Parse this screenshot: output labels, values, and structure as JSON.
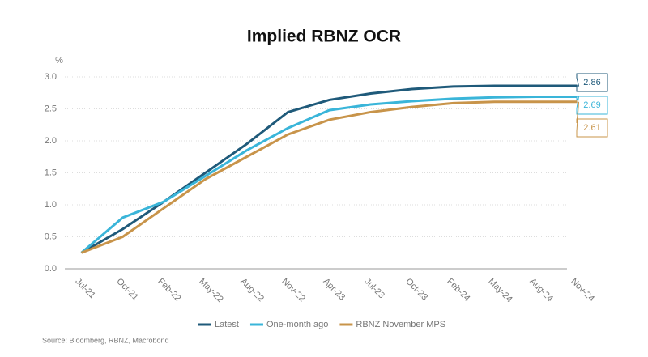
{
  "chart_data": {
    "type": "line",
    "title": "Implied RBNZ OCR",
    "y_label": "%",
    "categories": [
      "Jul-21",
      "Oct-21",
      "Feb-22",
      "May-22",
      "Aug-22",
      "Nov-22",
      "Apr-23",
      "Jul-23",
      "Oct-23",
      "Feb-24",
      "May-24",
      "Aug-24",
      "Nov-24"
    ],
    "series": [
      {
        "name": "Latest",
        "color": "#1f5a7a",
        "values": [
          0.25,
          0.62,
          1.05,
          1.5,
          1.95,
          2.45,
          2.64,
          2.74,
          2.81,
          2.85,
          2.86,
          2.86,
          2.86
        ]
      },
      {
        "name": "One-month ago",
        "color": "#3ab5d9",
        "values": [
          0.25,
          0.8,
          1.05,
          1.45,
          1.85,
          2.2,
          2.48,
          2.57,
          2.62,
          2.66,
          2.68,
          2.69,
          2.69
        ]
      },
      {
        "name": "RBNZ November MPS",
        "color": "#c8944a",
        "values": [
          0.25,
          0.5,
          0.95,
          1.4,
          1.75,
          2.1,
          2.33,
          2.45,
          2.53,
          2.59,
          2.61,
          2.61,
          2.61
        ]
      }
    ],
    "ylim": [
      0,
      3
    ],
    "yticks": [
      {
        "value": 0,
        "label": "0.0"
      },
      {
        "value": 0.5,
        "label": "0.5"
      },
      {
        "value": 1,
        "label": "1.0"
      },
      {
        "value": 1.5,
        "label": "1.5"
      },
      {
        "value": 2,
        "label": "2.0"
      },
      {
        "value": 2.5,
        "label": "2.5"
      },
      {
        "value": 3,
        "label": "3.0"
      }
    ],
    "grid": true,
    "source": "Source: Bloomberg, RBNZ, Macrobond"
  }
}
